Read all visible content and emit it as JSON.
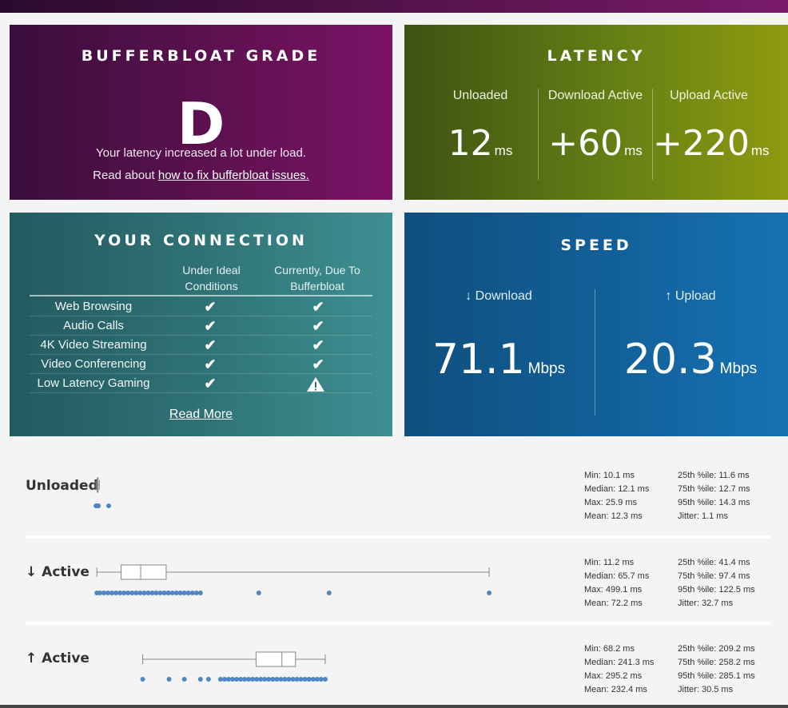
{
  "grade": {
    "title": "BUFFERBLOAT GRADE",
    "letter": "D",
    "line1": "Your latency increased a lot under load.",
    "line2_prefix": "Read about ",
    "line2_link": "how to fix bufferbloat issues."
  },
  "latency": {
    "title": "LATENCY",
    "items": [
      {
        "label": "Unloaded",
        "value": "12",
        "unit": "ms"
      },
      {
        "label": "Download Active",
        "value": "+60",
        "unit": "ms"
      },
      {
        "label": "Upload Active",
        "value": "+220",
        "unit": "ms"
      }
    ]
  },
  "connection": {
    "title": "YOUR CONNECTION",
    "col1_line1": "Under Ideal",
    "col1_line2": "Conditions",
    "col2_line1": "Currently, Due To",
    "col2_line2": "Bufferbloat",
    "rows": [
      {
        "name": "Web Browsing",
        "ideal": "✔",
        "current": "✔"
      },
      {
        "name": "Audio Calls",
        "ideal": "✔",
        "current": "✔"
      },
      {
        "name": "4K Video Streaming",
        "ideal": "✔",
        "current": "✔"
      },
      {
        "name": "Video Conferencing",
        "ideal": "✔",
        "current": "✔"
      },
      {
        "name": "Low Latency Gaming",
        "ideal": "✔",
        "current": "warning"
      }
    ],
    "read_more": "Read More"
  },
  "speed": {
    "title": "SPEED",
    "download": {
      "label": "↓ Download",
      "value": "71.1",
      "unit": "Mbps"
    },
    "upload": {
      "label": "↑ Upload",
      "value": "20.3",
      "unit": "Mbps"
    }
  },
  "rows": [
    {
      "label": "Unloaded",
      "stats": {
        "min": "Min: 10.1 ms",
        "median": "Median: 12.1 ms",
        "max": "Max: 25.9 ms",
        "mean": "Mean: 12.3 ms",
        "p25": "25th %ile: 11.6 ms",
        "p75": "75th %ile: 12.7 ms",
        "p95": "95th %ile: 14.3 ms",
        "jitter": "Jitter: 1.1 ms"
      },
      "box": {
        "whisker_low": 10.1,
        "q1": 11.6,
        "median": 12.1,
        "q3": 12.7,
        "whisker_high": 14.3
      },
      "outliers": [
        10.1,
        10.5,
        11.0,
        11.5,
        12.0,
        12.5,
        13.0,
        25.9
      ]
    },
    {
      "label": "↓ Active",
      "stats": {
        "min": "Min: 11.2 ms",
        "median": "Median: 65.7 ms",
        "max": "Max: 499.1 ms",
        "mean": "Mean: 72.2 ms",
        "p25": "25th %ile: 41.4 ms",
        "p75": "75th %ile: 97.4 ms",
        "p95": "95th %ile: 122.5 ms",
        "jitter": "Jitter: 32.7 ms"
      },
      "box": {
        "whisker_low": 11.2,
        "q1": 41.4,
        "median": 65.7,
        "q3": 97.4,
        "whisker_high": 499.1
      },
      "outliers": [
        11.2,
        15,
        20,
        25,
        30,
        35,
        40,
        45,
        50,
        55,
        60,
        65,
        70,
        75,
        80,
        85,
        90,
        95,
        100,
        105,
        110,
        115,
        120,
        125,
        130,
        135,
        140,
        212.5,
        300,
        499.1
      ]
    },
    {
      "label": "↑ Active",
      "stats": {
        "min": "Min: 68.2 ms",
        "median": "Median: 241.3 ms",
        "max": "Max: 295.2 ms",
        "mean": "Mean: 232.4 ms",
        "p25": "25th %ile: 209.2 ms",
        "p75": "75th %ile: 258.2 ms",
        "p95": "95th %ile: 285.1 ms",
        "jitter": "Jitter: 30.5 ms"
      },
      "box": {
        "whisker_low": 68.2,
        "q1": 209.2,
        "median": 241.3,
        "q3": 258.2,
        "whisker_high": 295.2
      },
      "outliers": [
        68.2,
        101,
        120,
        140,
        150,
        165,
        170,
        175,
        180,
        185,
        190,
        195,
        200,
        205,
        210,
        215,
        220,
        225,
        230,
        235,
        240,
        245,
        250,
        255,
        260,
        265,
        270,
        275,
        280,
        285,
        290,
        295.2
      ]
    }
  ],
  "colors": {
    "dot": "#4f86c6",
    "box_stroke": "#888888"
  }
}
